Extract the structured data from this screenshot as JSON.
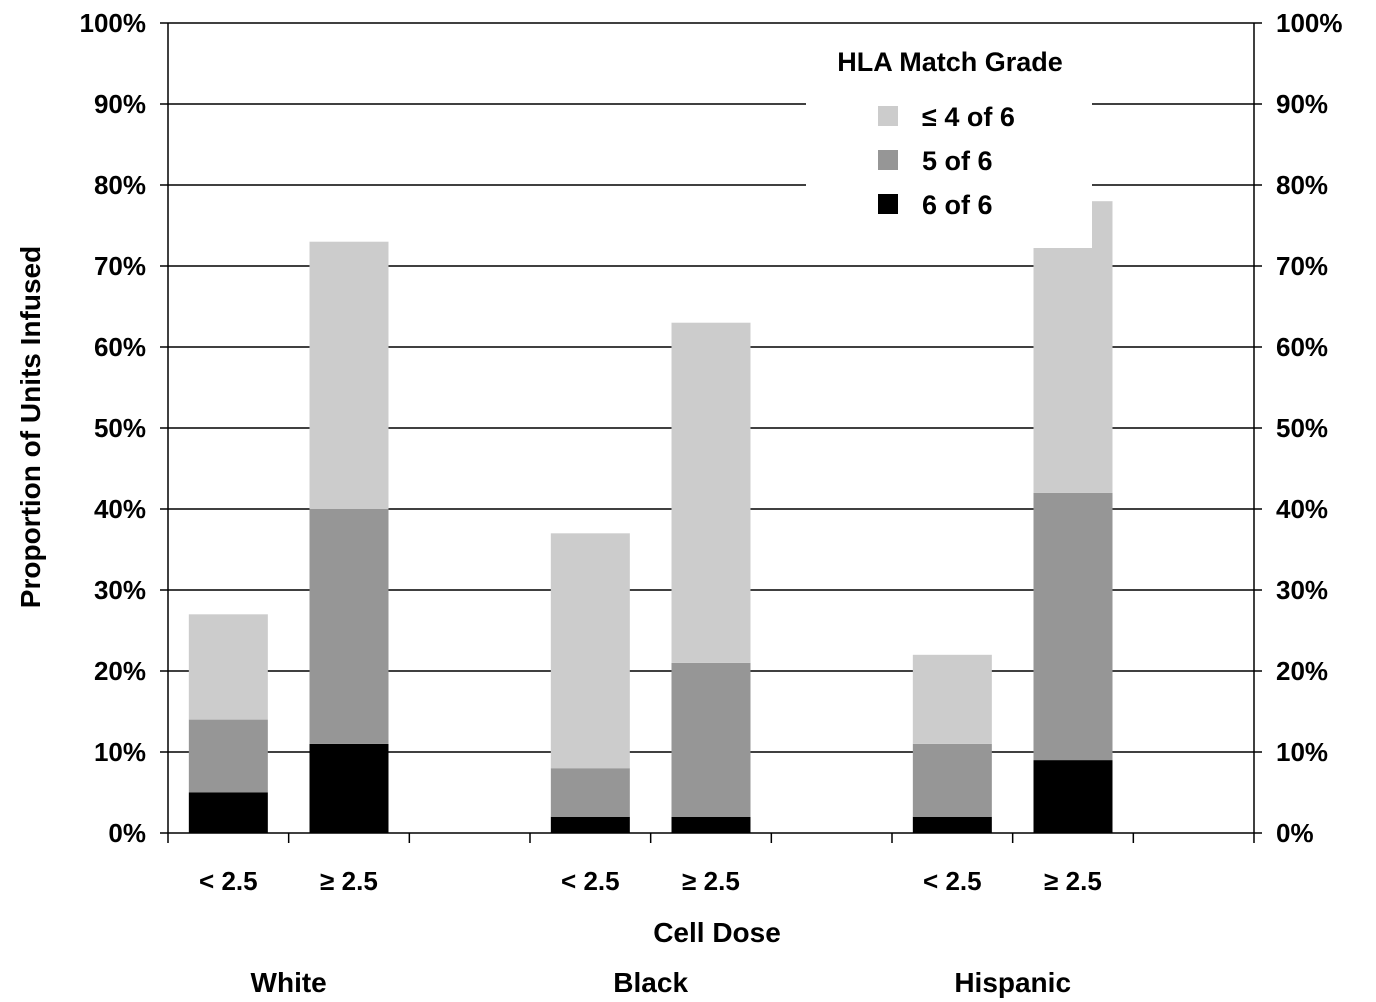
{
  "chart_data": {
    "type": "bar",
    "stacked": true,
    "ylabel": "Proportion of Units Infused",
    "xlabel": "Cell Dose",
    "ylim": [
      0,
      100
    ],
    "y_ticks": [
      "0%",
      "10%",
      "20%",
      "30%",
      "40%",
      "50%",
      "60%",
      "70%",
      "80%",
      "90%",
      "100%"
    ],
    "secondary_y_axis": true,
    "grid": true,
    "legend": {
      "title": "HLA Match Grade",
      "placement": "top-right"
    },
    "groups": [
      {
        "name": "White",
        "categories": [
          "< 2.5",
          "≥ 2.5"
        ]
      },
      {
        "name": "Black",
        "categories": [
          "< 2.5",
          "≥ 2.5"
        ]
      },
      {
        "name": "Hispanic",
        "categories": [
          "< 2.5",
          "≥ 2.5"
        ]
      }
    ],
    "series": [
      {
        "name": "6 of 6",
        "color": "#000000",
        "values": [
          5,
          11,
          2,
          2,
          2,
          9
        ]
      },
      {
        "name": "5 of 6",
        "color": "#969696",
        "values": [
          9,
          29,
          6,
          19,
          9,
          33
        ]
      },
      {
        "name": "≤ 4 of 6",
        "color": "#cccccc",
        "values": [
          13,
          33,
          29,
          42,
          11,
          36
        ]
      }
    ],
    "legend_order": [
      "≤ 4 of 6",
      "5 of 6",
      "6 of 6"
    ]
  }
}
